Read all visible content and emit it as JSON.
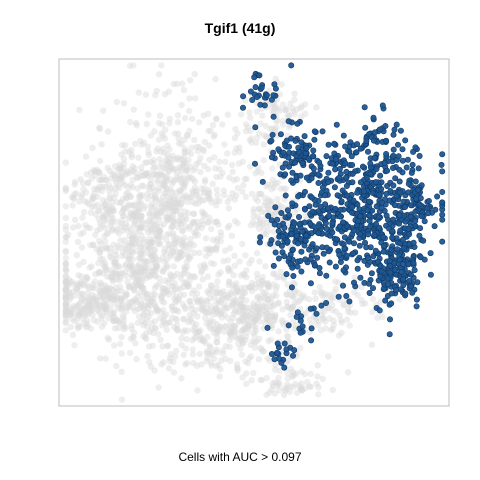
{
  "chart_data": {
    "type": "scatter",
    "title": "Tgif1 (41g)",
    "caption": "Cells with AUC > 0.097",
    "xlabel": "",
    "ylabel": "",
    "grid": false,
    "legend": "none",
    "colors": {
      "background_cells": "#d9d9d9",
      "positive_cells": "#1f5691",
      "positive_edge": "#103a66"
    },
    "series": [
      {
        "class": "all",
        "clusters": [
          {
            "cx": 0.06,
            "cy": 0.7,
            "sx": 0.05,
            "sy": 0.04,
            "n": 160
          },
          {
            "cx": 0.2,
            "cy": 0.6,
            "sx": 0.1,
            "sy": 0.12,
            "n": 700
          },
          {
            "cx": 0.3,
            "cy": 0.35,
            "sx": 0.09,
            "sy": 0.12,
            "n": 500
          },
          {
            "cx": 0.4,
            "cy": 0.78,
            "sx": 0.1,
            "sy": 0.07,
            "n": 300
          },
          {
            "cx": 0.5,
            "cy": 0.7,
            "sx": 0.06,
            "sy": 0.07,
            "n": 180
          },
          {
            "cx": 0.55,
            "cy": 0.45,
            "sx": 0.04,
            "sy": 0.06,
            "n": 120
          },
          {
            "cx": 0.68,
            "cy": 0.72,
            "sx": 0.08,
            "sy": 0.04,
            "n": 120
          },
          {
            "cx": 0.55,
            "cy": 0.15,
            "sx": 0.04,
            "sy": 0.04,
            "n": 80
          },
          {
            "cx": 0.58,
            "cy": 0.94,
            "sx": 0.05,
            "sy": 0.03,
            "n": 60
          },
          {
            "cx": 0.12,
            "cy": 0.38,
            "sx": 0.05,
            "sy": 0.06,
            "n": 120
          }
        ]
      },
      {
        "class": "auc_positive",
        "clusters": [
          {
            "cx": 0.78,
            "cy": 0.44,
            "sx": 0.09,
            "sy": 0.1,
            "n": 520
          },
          {
            "cx": 0.87,
            "cy": 0.6,
            "sx": 0.04,
            "sy": 0.06,
            "n": 160
          },
          {
            "cx": 0.6,
            "cy": 0.52,
            "sx": 0.03,
            "sy": 0.04,
            "n": 90
          },
          {
            "cx": 0.6,
            "cy": 0.27,
            "sx": 0.04,
            "sy": 0.04,
            "n": 70
          },
          {
            "cx": 0.83,
            "cy": 0.23,
            "sx": 0.04,
            "sy": 0.04,
            "n": 55
          },
          {
            "cx": 0.52,
            "cy": 0.09,
            "sx": 0.03,
            "sy": 0.03,
            "n": 28
          },
          {
            "cx": 0.93,
            "cy": 0.43,
            "sx": 0.02,
            "sy": 0.02,
            "n": 30
          },
          {
            "cx": 0.58,
            "cy": 0.86,
            "sx": 0.02,
            "sy": 0.03,
            "n": 18
          },
          {
            "cx": 0.64,
            "cy": 0.75,
            "sx": 0.02,
            "sy": 0.03,
            "n": 16
          },
          {
            "cx": 0.9,
            "cy": 0.38,
            "sx": 0.03,
            "sy": 0.03,
            "n": 20
          },
          {
            "cx": 0.7,
            "cy": 0.3,
            "sx": 0.03,
            "sy": 0.03,
            "n": 18
          }
        ]
      }
    ]
  }
}
